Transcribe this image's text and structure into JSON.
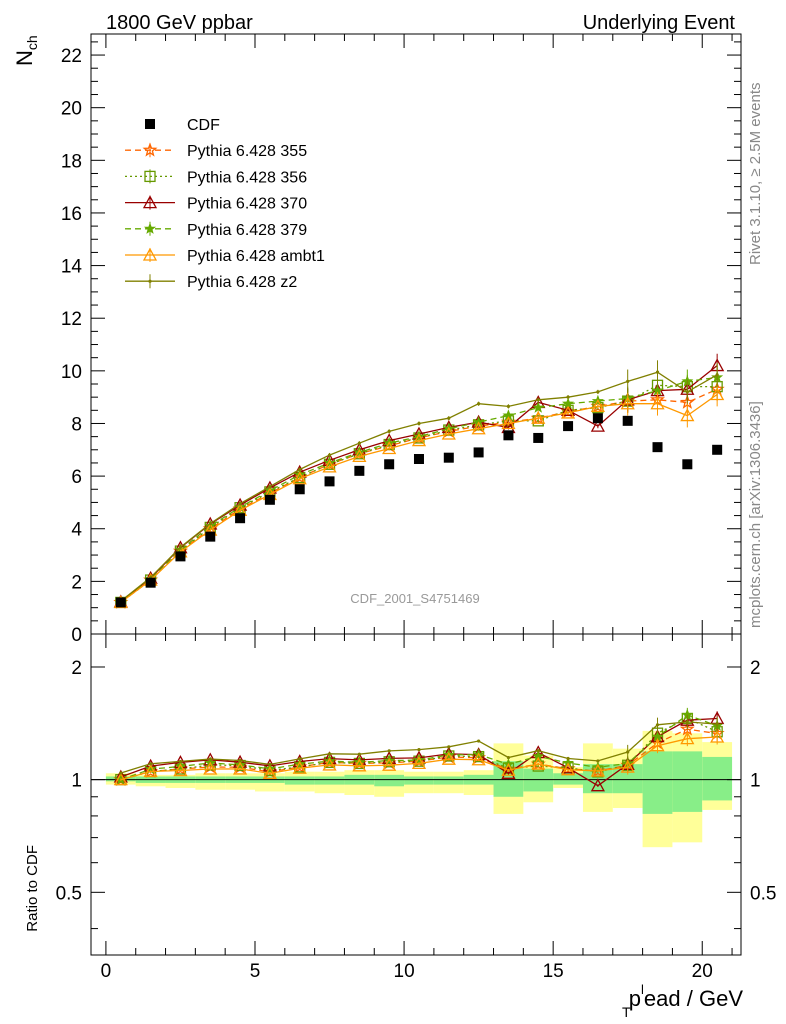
{
  "header": {
    "left": "1800 GeV ppbar",
    "right": "Underlying Event"
  },
  "side_text": {
    "top": "Rivet 3.1.10, ≥ 2.5M events",
    "bottom": "mcplots.cern.ch [arXiv:1306.3436]"
  },
  "analysis_tag": "CDF_2001_S4751469",
  "chart_data": {
    "type": "scatter",
    "x": [
      0.5,
      1.5,
      2.5,
      3.5,
      4.5,
      5.5,
      6.5,
      7.5,
      8.5,
      9.5,
      10.5,
      11.5,
      12.5,
      13.5,
      14.5,
      15.5,
      16.5,
      17.5,
      18.5,
      19.5,
      20.5
    ],
    "main": {
      "ylabel_main": "N",
      "ylabel_sub": "ch",
      "xlim": [
        -0.5,
        21.3
      ],
      "ylim": [
        0,
        22.8
      ],
      "yticks": [
        0,
        2,
        4,
        6,
        8,
        10,
        12,
        14,
        16,
        18,
        20,
        22
      ],
      "legend_position": "top-left"
    },
    "ratio": {
      "ylabel": "Ratio to CDF",
      "ylim_log": [
        0.34,
        2.45
      ],
      "yticks": [
        0.5,
        1,
        2
      ],
      "ytick_labels": [
        "0.5",
        "1",
        "2"
      ],
      "band_yellow": [
        [
          0.97,
          1.04
        ],
        [
          0.96,
          1.03
        ],
        [
          0.95,
          1.03
        ],
        [
          0.94,
          1.04
        ],
        [
          0.94,
          1.04
        ],
        [
          0.93,
          1.04
        ],
        [
          0.93,
          1.05
        ],
        [
          0.92,
          1.05
        ],
        [
          0.91,
          1.06
        ],
        [
          0.9,
          1.06
        ],
        [
          0.92,
          1.05
        ],
        [
          0.92,
          1.05
        ],
        [
          0.91,
          1.06
        ],
        [
          0.81,
          1.25
        ],
        [
          0.87,
          1.16
        ],
        [
          0.95,
          1.08
        ],
        [
          0.82,
          1.25
        ],
        [
          0.84,
          1.21
        ],
        [
          0.66,
          1.35
        ],
        [
          0.68,
          1.33
        ],
        [
          0.83,
          1.26
        ]
      ],
      "band_green": [
        [
          0.99,
          1.02
        ],
        [
          0.98,
          1.02
        ],
        [
          0.98,
          1.02
        ],
        [
          0.98,
          1.02
        ],
        [
          0.98,
          1.02
        ],
        [
          0.98,
          1.02
        ],
        [
          0.97,
          1.02
        ],
        [
          0.97,
          1.02
        ],
        [
          0.97,
          1.03
        ],
        [
          0.96,
          1.03
        ],
        [
          0.97,
          1.02
        ],
        [
          0.97,
          1.02
        ],
        [
          0.97,
          1.03
        ],
        [
          0.9,
          1.12
        ],
        [
          0.93,
          1.07
        ],
        [
          0.97,
          1.04
        ],
        [
          0.92,
          1.1
        ],
        [
          0.92,
          1.1
        ],
        [
          0.81,
          1.19
        ],
        [
          0.82,
          1.19
        ],
        [
          0.88,
          1.15
        ]
      ]
    },
    "xlabel_main": "p",
    "xlabel_sub": "T",
    "xlabel_sup": "l",
    "xlabel_rest": "ead / GeV",
    "xticks": [
      0,
      5,
      10,
      15,
      20
    ],
    "data": {
      "name": "CDF",
      "color": "#000000",
      "y": [
        1.2,
        1.95,
        2.95,
        3.7,
        4.4,
        5.1,
        5.5,
        5.8,
        6.2,
        6.45,
        6.65,
        6.7,
        6.9,
        7.55,
        7.45,
        7.9,
        8.2,
        8.1,
        7.1,
        6.45,
        7.0
      ]
    },
    "series": [
      {
        "name": "Pythia 6.428 355",
        "color": "#ff6600",
        "marker": "star",
        "dash": "6,4",
        "y": [
          1.2,
          2.05,
          3.15,
          4.0,
          4.75,
          5.35,
          5.95,
          6.45,
          6.85,
          7.15,
          7.45,
          7.7,
          7.9,
          8.05,
          8.2,
          8.45,
          8.65,
          8.85,
          8.9,
          8.8,
          9.3
        ]
      },
      {
        "name": "Pythia 6.428 356",
        "color": "#669900",
        "marker": "square",
        "dash": "2,3",
        "y": [
          1.2,
          2.05,
          3.15,
          4.05,
          4.8,
          5.4,
          5.95,
          6.45,
          6.85,
          7.2,
          7.45,
          7.75,
          7.95,
          8.1,
          8.1,
          8.5,
          8.6,
          8.85,
          9.45,
          9.4,
          9.4
        ]
      },
      {
        "name": "Pythia 6.428 370",
        "color": "#990000",
        "marker": "triangle",
        "dash": "",
        "y": [
          1.22,
          2.12,
          3.28,
          4.18,
          4.9,
          5.55,
          6.15,
          6.6,
          7.0,
          7.35,
          7.6,
          7.85,
          8.05,
          7.85,
          8.8,
          8.5,
          7.9,
          8.9,
          9.25,
          9.3,
          10.2
        ]
      },
      {
        "name": "Pythia 6.428 379",
        "color": "#66aa00",
        "marker": "smallstar",
        "dash": "6,4",
        "y": [
          1.2,
          2.08,
          3.2,
          4.1,
          4.82,
          5.45,
          6.05,
          6.5,
          6.9,
          7.25,
          7.5,
          7.8,
          8.05,
          8.3,
          8.6,
          8.75,
          8.85,
          8.95,
          9.25,
          9.6,
          9.75
        ]
      },
      {
        "name": "Pythia 6.428 ambt1",
        "color": "#ff9900",
        "marker": "triangle",
        "dash": "",
        "y": [
          1.2,
          2.05,
          3.12,
          3.95,
          4.7,
          5.3,
          5.9,
          6.35,
          6.75,
          7.05,
          7.35,
          7.6,
          7.8,
          8.0,
          8.2,
          8.4,
          8.65,
          8.75,
          8.75,
          8.3,
          9.1
        ]
      },
      {
        "name": "Pythia 6.428 z2",
        "color": "#808000",
        "marker": "dot",
        "dash": "",
        "y": [
          1.25,
          2.15,
          3.3,
          4.2,
          4.95,
          5.6,
          6.25,
          6.8,
          7.25,
          7.7,
          8.0,
          8.2,
          8.75,
          8.65,
          8.9,
          9.0,
          9.2,
          9.6,
          9.95,
          9.2,
          9.85
        ]
      }
    ]
  }
}
